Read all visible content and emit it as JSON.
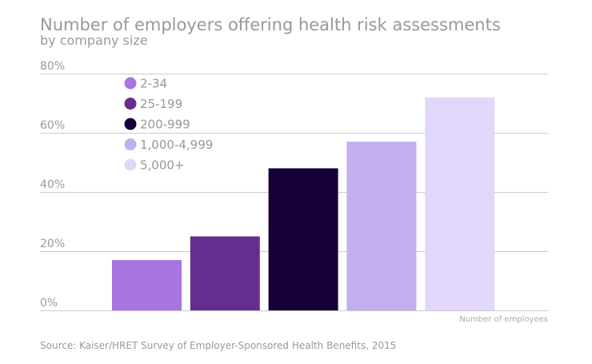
{
  "chart_data": {
    "type": "bar",
    "title": "Number of employers offering health risk assessments",
    "subtitle": "by company size",
    "xlabel": "Number of employees",
    "ylabel": "",
    "ylim": [
      0,
      80
    ],
    "yticks": [
      "0%",
      "20%",
      "40%",
      "60%",
      "80%"
    ],
    "ytick_values": [
      0,
      20,
      40,
      60,
      80
    ],
    "grid": true,
    "legend_position": "top-left",
    "categories": [
      "2-34",
      "25-199",
      "200-999",
      "1,000-4,999",
      "5,000+"
    ],
    "values": [
      17,
      25,
      48,
      57,
      72
    ],
    "colors": [
      "#a874e0",
      "#662d91",
      "#170037",
      "#c3aef0",
      "#e2d7fb"
    ],
    "source": "Source: Kaiser/HRET Survey of Employer-Sponsored Health Benefits, 2015"
  }
}
